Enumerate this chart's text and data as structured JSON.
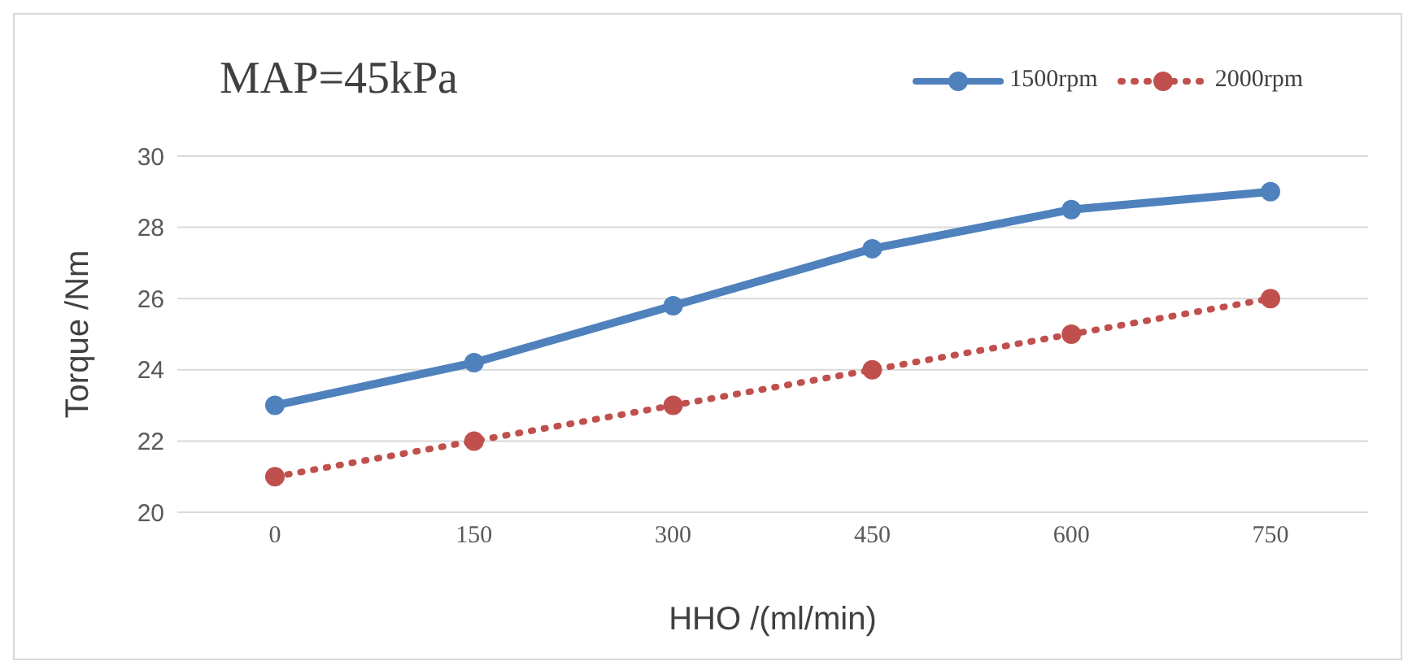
{
  "chart_data": {
    "type": "line",
    "title": "MAP=45kPa",
    "xlabel": "HHO /(ml/min)",
    "ylabel": "Torque /Nm",
    "categories": [
      "0",
      "150",
      "300",
      "450",
      "600",
      "750"
    ],
    "series": [
      {
        "name": "1500rpm",
        "color": "#4f81bd",
        "line_style": "solid",
        "values": [
          23,
          24.2,
          25.8,
          27.4,
          28.5,
          29
        ]
      },
      {
        "name": "2000rpm",
        "color": "#c0504d",
        "line_style": "dotted",
        "values": [
          21,
          22,
          23,
          24,
          25,
          26
        ]
      }
    ],
    "ylim": [
      20,
      30
    ],
    "yticks": [
      20,
      22,
      24,
      26,
      28,
      30
    ],
    "grid": "y",
    "legend": "top right",
    "marker": "circle"
  }
}
